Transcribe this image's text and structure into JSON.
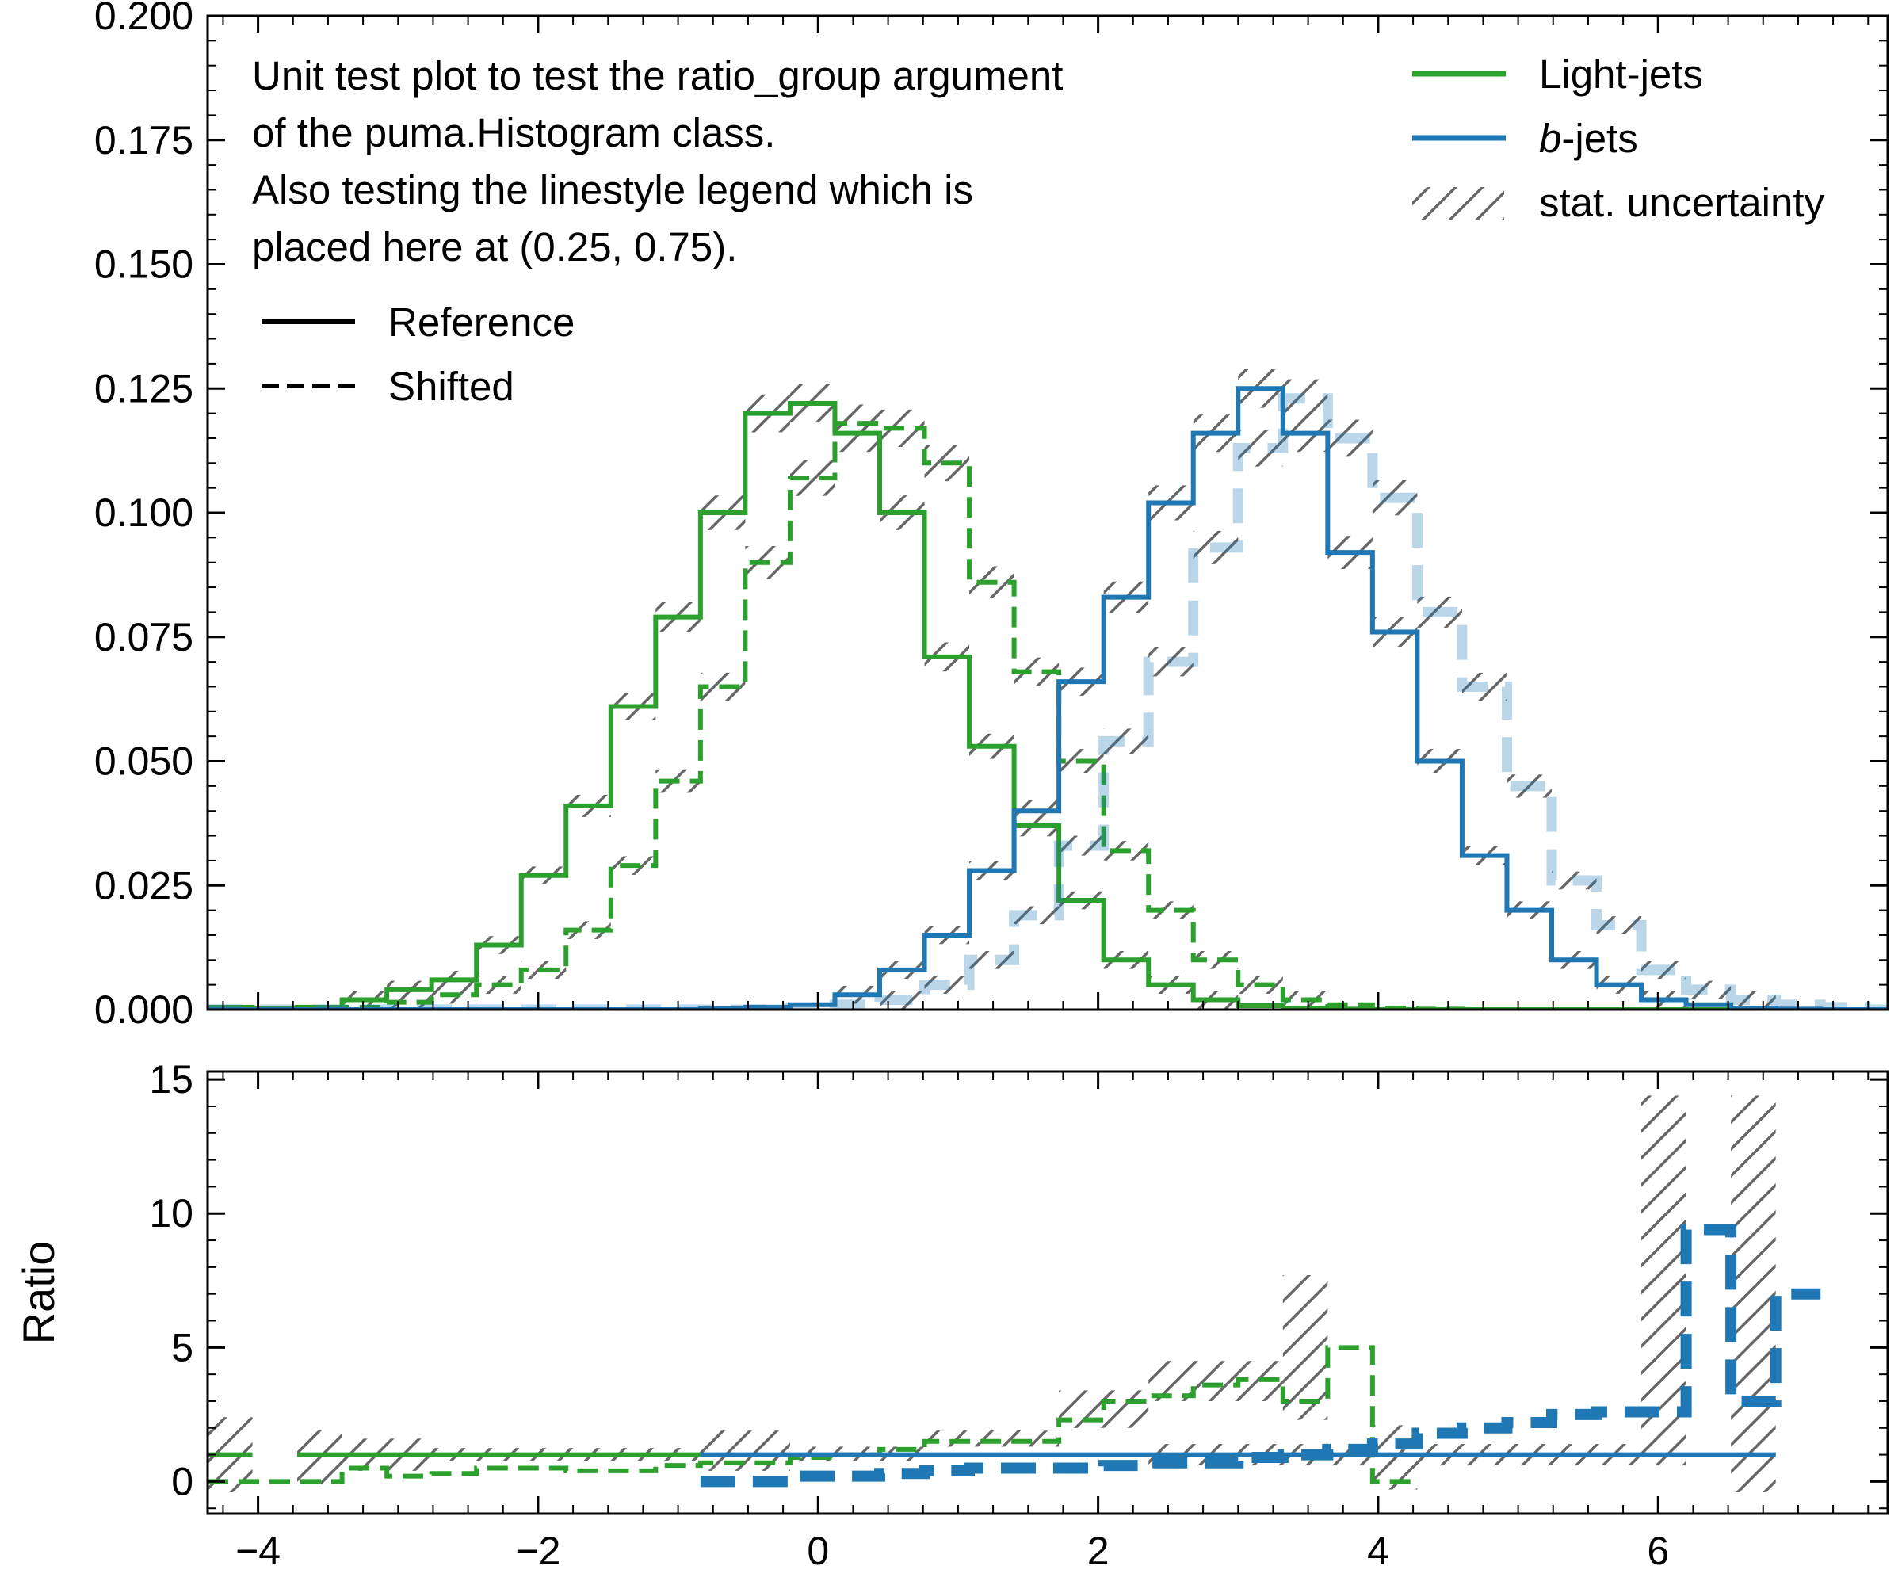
{
  "chart_data": [
    {
      "type": "histogram",
      "panel": "main",
      "note_lines": [
        "Unit test plot to test the ratio_group argument",
        "of the puma.Histogram class.",
        "Also testing the linestyle legend which is",
        "placed here at (0.25, 0.75)."
      ],
      "xlim": [
        -4.36,
        7.64
      ],
      "ylim": [
        0,
        0.2
      ],
      "yticks": [
        "0.000",
        "0.025",
        "0.050",
        "0.075",
        "0.100",
        "0.125",
        "0.150",
        "0.175",
        "0.200"
      ],
      "ytick_values": [
        0,
        0.025,
        0.05,
        0.075,
        0.1,
        0.125,
        0.15,
        0.175,
        0.2
      ],
      "grid": false,
      "legend": {
        "position": "top-right",
        "entries": [
          {
            "label_prefix": "",
            "label_italic": "",
            "label": "Light-jets",
            "color": "#2ca02c",
            "style": "line"
          },
          {
            "label_prefix": "",
            "label_italic": "b",
            "label": "-jets",
            "color": "#1f77b4",
            "style": "line"
          },
          {
            "label_prefix": "",
            "label_italic": "",
            "label": "stat. uncertainty",
            "color": "#666666",
            "style": "hatch"
          }
        ]
      },
      "linestyle_legend": {
        "position": "upper-left",
        "entries": [
          {
            "label": "Reference",
            "style": "solid"
          },
          {
            "label": "Shifted",
            "style": "dashed"
          }
        ]
      },
      "bin_edges": [
        -4.36,
        -4.04,
        -3.72,
        -3.4,
        -3.08,
        -2.76,
        -2.44,
        -2.12,
        -1.8,
        -1.48,
        -1.16,
        -0.84,
        -0.52,
        -0.2,
        0.12,
        0.44,
        0.76,
        1.08,
        1.4,
        1.72,
        2.04,
        2.36,
        2.68,
        3.0,
        3.32,
        3.64,
        3.96,
        4.28,
        4.6,
        4.92,
        5.24,
        5.56,
        5.88,
        6.2,
        6.52,
        6.84,
        7.16,
        7.48,
        7.64
      ],
      "series": [
        {
          "name": "Light-jets",
          "style": "solid",
          "color": "#2ca02c",
          "alpha": 1.0,
          "values": [
            0.0005,
            0.0002,
            0.0005,
            0.002,
            0.004,
            0.006,
            0.013,
            0.027,
            0.041,
            0.061,
            0.079,
            0.1,
            0.12,
            0.122,
            0.116,
            0.1,
            0.071,
            0.053,
            0.037,
            0.022,
            0.01,
            0.005,
            0.002,
            0.0008,
            0.0003,
            0.0001,
            0,
            0,
            0,
            0,
            0,
            0,
            0,
            0,
            0,
            0,
            0,
            0
          ]
        },
        {
          "name": "Light-jets",
          "style": "dashed",
          "color": "#2ca02c",
          "alpha": 1.0,
          "values": [
            0,
            0,
            0,
            0.0005,
            0.0015,
            0.003,
            0.005,
            0.008,
            0.016,
            0.029,
            0.046,
            0.065,
            0.09,
            0.107,
            0.118,
            0.117,
            0.11,
            0.086,
            0.068,
            0.05,
            0.032,
            0.02,
            0.01,
            0.005,
            0.002,
            0.001,
            0.0003,
            0.0001,
            0,
            0,
            0,
            0,
            0,
            0,
            0,
            0,
            0,
            0
          ]
        },
        {
          "name": "b-jets",
          "style": "solid",
          "color": "#1f77b4",
          "alpha": 1.0,
          "values": [
            0,
            0,
            0,
            0,
            0,
            0,
            0,
            0,
            0,
            0,
            0,
            0.0002,
            0.0005,
            0.001,
            0.003,
            0.008,
            0.015,
            0.028,
            0.04,
            0.066,
            0.083,
            0.102,
            0.116,
            0.125,
            0.116,
            0.092,
            0.076,
            0.05,
            0.031,
            0.02,
            0.01,
            0.005,
            0.002,
            0.001,
            0.0003,
            0.0001,
            0,
            0
          ]
        },
        {
          "name": "b-jets",
          "style": "dashed",
          "color": "#1f77b4",
          "alpha": 0.3,
          "values": [
            0,
            0,
            0,
            0,
            0,
            0,
            0,
            0,
            0,
            0,
            0,
            0,
            0,
            0.0003,
            0.001,
            0.002,
            0.005,
            0.01,
            0.019,
            0.033,
            0.054,
            0.07,
            0.093,
            0.113,
            0.123,
            0.115,
            0.103,
            0.08,
            0.065,
            0.045,
            0.026,
            0.017,
            0.008,
            0.004,
            0.002,
            0.001,
            0.0005,
            0
          ]
        }
      ]
    },
    {
      "type": "ratio",
      "panel": "ratio",
      "ylabel": "Ratio",
      "xlim": [
        -4.36,
        7.64
      ],
      "ylim": [
        -1.2,
        15.3
      ],
      "yticks": [
        "0",
        "5",
        "10",
        "15"
      ],
      "ytick_values": [
        0,
        5,
        10,
        15
      ],
      "xticks": [
        "−4",
        "−2",
        "0",
        "2",
        "4",
        "6"
      ],
      "xtick_values": [
        -4,
        -2,
        0,
        2,
        4,
        6
      ],
      "series": [
        {
          "name": "Light-jets",
          "style": "solid",
          "color": "#2ca02c",
          "segments": [
            {
              "x0": -4.36,
              "x1": -4.04,
              "y": 1.0
            },
            {
              "x0": -3.72,
              "x1": -0.84,
              "y": 1.0
            }
          ]
        },
        {
          "name": "Light-jets",
          "style": "dashed",
          "color": "#2ca02c",
          "steps": [
            [
              -4.36,
              0.0
            ],
            [
              -3.72,
              0.0
            ],
            [
              -3.4,
              0.5
            ],
            [
              -3.08,
              0.2
            ],
            [
              -2.76,
              0.3
            ],
            [
              -2.44,
              0.5
            ],
            [
              -1.8,
              0.4
            ],
            [
              -1.16,
              0.6
            ],
            [
              -0.84,
              0.7
            ],
            [
              -0.52,
              0.7
            ],
            [
              -0.2,
              0.9
            ],
            [
              0.12,
              1.0
            ],
            [
              0.44,
              1.2
            ],
            [
              0.76,
              1.5
            ],
            [
              1.72,
              2.3
            ],
            [
              2.04,
              3.0
            ],
            [
              2.36,
              3.2
            ],
            [
              2.68,
              3.6
            ],
            [
              3.0,
              3.8
            ],
            [
              3.32,
              3.0
            ],
            [
              3.64,
              5.0
            ],
            [
              3.96,
              0.0
            ],
            [
              4.28,
              0.0
            ]
          ]
        },
        {
          "name": "b-jets",
          "style": "solid",
          "color": "#1f77b4",
          "segments": [
            {
              "x0": -0.84,
              "x1": 6.84,
              "y": 1.0
            }
          ]
        },
        {
          "name": "b-jets",
          "style": "dashed",
          "color": "#1f77b4",
          "steps": [
            [
              -0.84,
              0.0
            ],
            [
              -0.52,
              0.0
            ],
            [
              -0.2,
              0.2
            ],
            [
              0.44,
              0.3
            ],
            [
              0.76,
              0.4
            ],
            [
              1.08,
              0.5
            ],
            [
              1.4,
              0.5
            ],
            [
              2.04,
              0.6
            ],
            [
              2.36,
              0.7
            ],
            [
              3.0,
              0.9
            ],
            [
              3.32,
              1.0
            ],
            [
              3.64,
              1.2
            ],
            [
              3.96,
              1.4
            ],
            [
              4.28,
              1.8
            ],
            [
              4.6,
              2.0
            ],
            [
              4.92,
              2.2
            ],
            [
              5.24,
              2.5
            ],
            [
              5.56,
              2.6
            ],
            [
              5.88,
              2.6
            ],
            [
              6.2,
              9.4
            ],
            [
              6.52,
              3.0
            ],
            [
              6.84,
              7.0
            ],
            [
              7.16,
              7.0
            ]
          ]
        }
      ],
      "uncertainty_bands": [
        {
          "x0": -4.36,
          "x1": -4.04,
          "lo": -0.4,
          "hi": 2.4
        },
        {
          "x0": -3.72,
          "x1": -3.4,
          "lo": -0.1,
          "hi": 1.9
        },
        {
          "x0": -3.4,
          "x1": -2.76,
          "lo": 0.4,
          "hi": 1.6
        },
        {
          "x0": -2.76,
          "x1": -0.84,
          "lo": 0.75,
          "hi": 1.25
        },
        {
          "x0": -0.84,
          "x1": -0.2,
          "lo": 0.4,
          "hi": 1.9
        },
        {
          "x0": -0.2,
          "x1": 0.76,
          "lo": 0.75,
          "hi": 1.3
        },
        {
          "x0": 0.76,
          "x1": 1.72,
          "lo": 1.3,
          "hi": 1.9
        },
        {
          "x0": 1.72,
          "x1": 2.36,
          "lo": 2.0,
          "hi": 3.4
        },
        {
          "x0": 2.36,
          "x1": 3.32,
          "lo": 3.0,
          "hi": 4.5
        },
        {
          "x0": 3.32,
          "x1": 3.64,
          "lo": 2.3,
          "hi": 7.7
        },
        {
          "x0": 3.96,
          "x1": 4.28,
          "lo": -0.3,
          "hi": 2.1
        },
        {
          "x0": 5.88,
          "x1": 6.2,
          "lo": 0.6,
          "hi": 14.4
        },
        {
          "x0": 6.52,
          "x1": 6.84,
          "lo": -0.4,
          "hi": 14.4
        },
        {
          "x0": 2.36,
          "x1": 5.88,
          "lo": 0.6,
          "hi": 1.4
        }
      ]
    }
  ]
}
